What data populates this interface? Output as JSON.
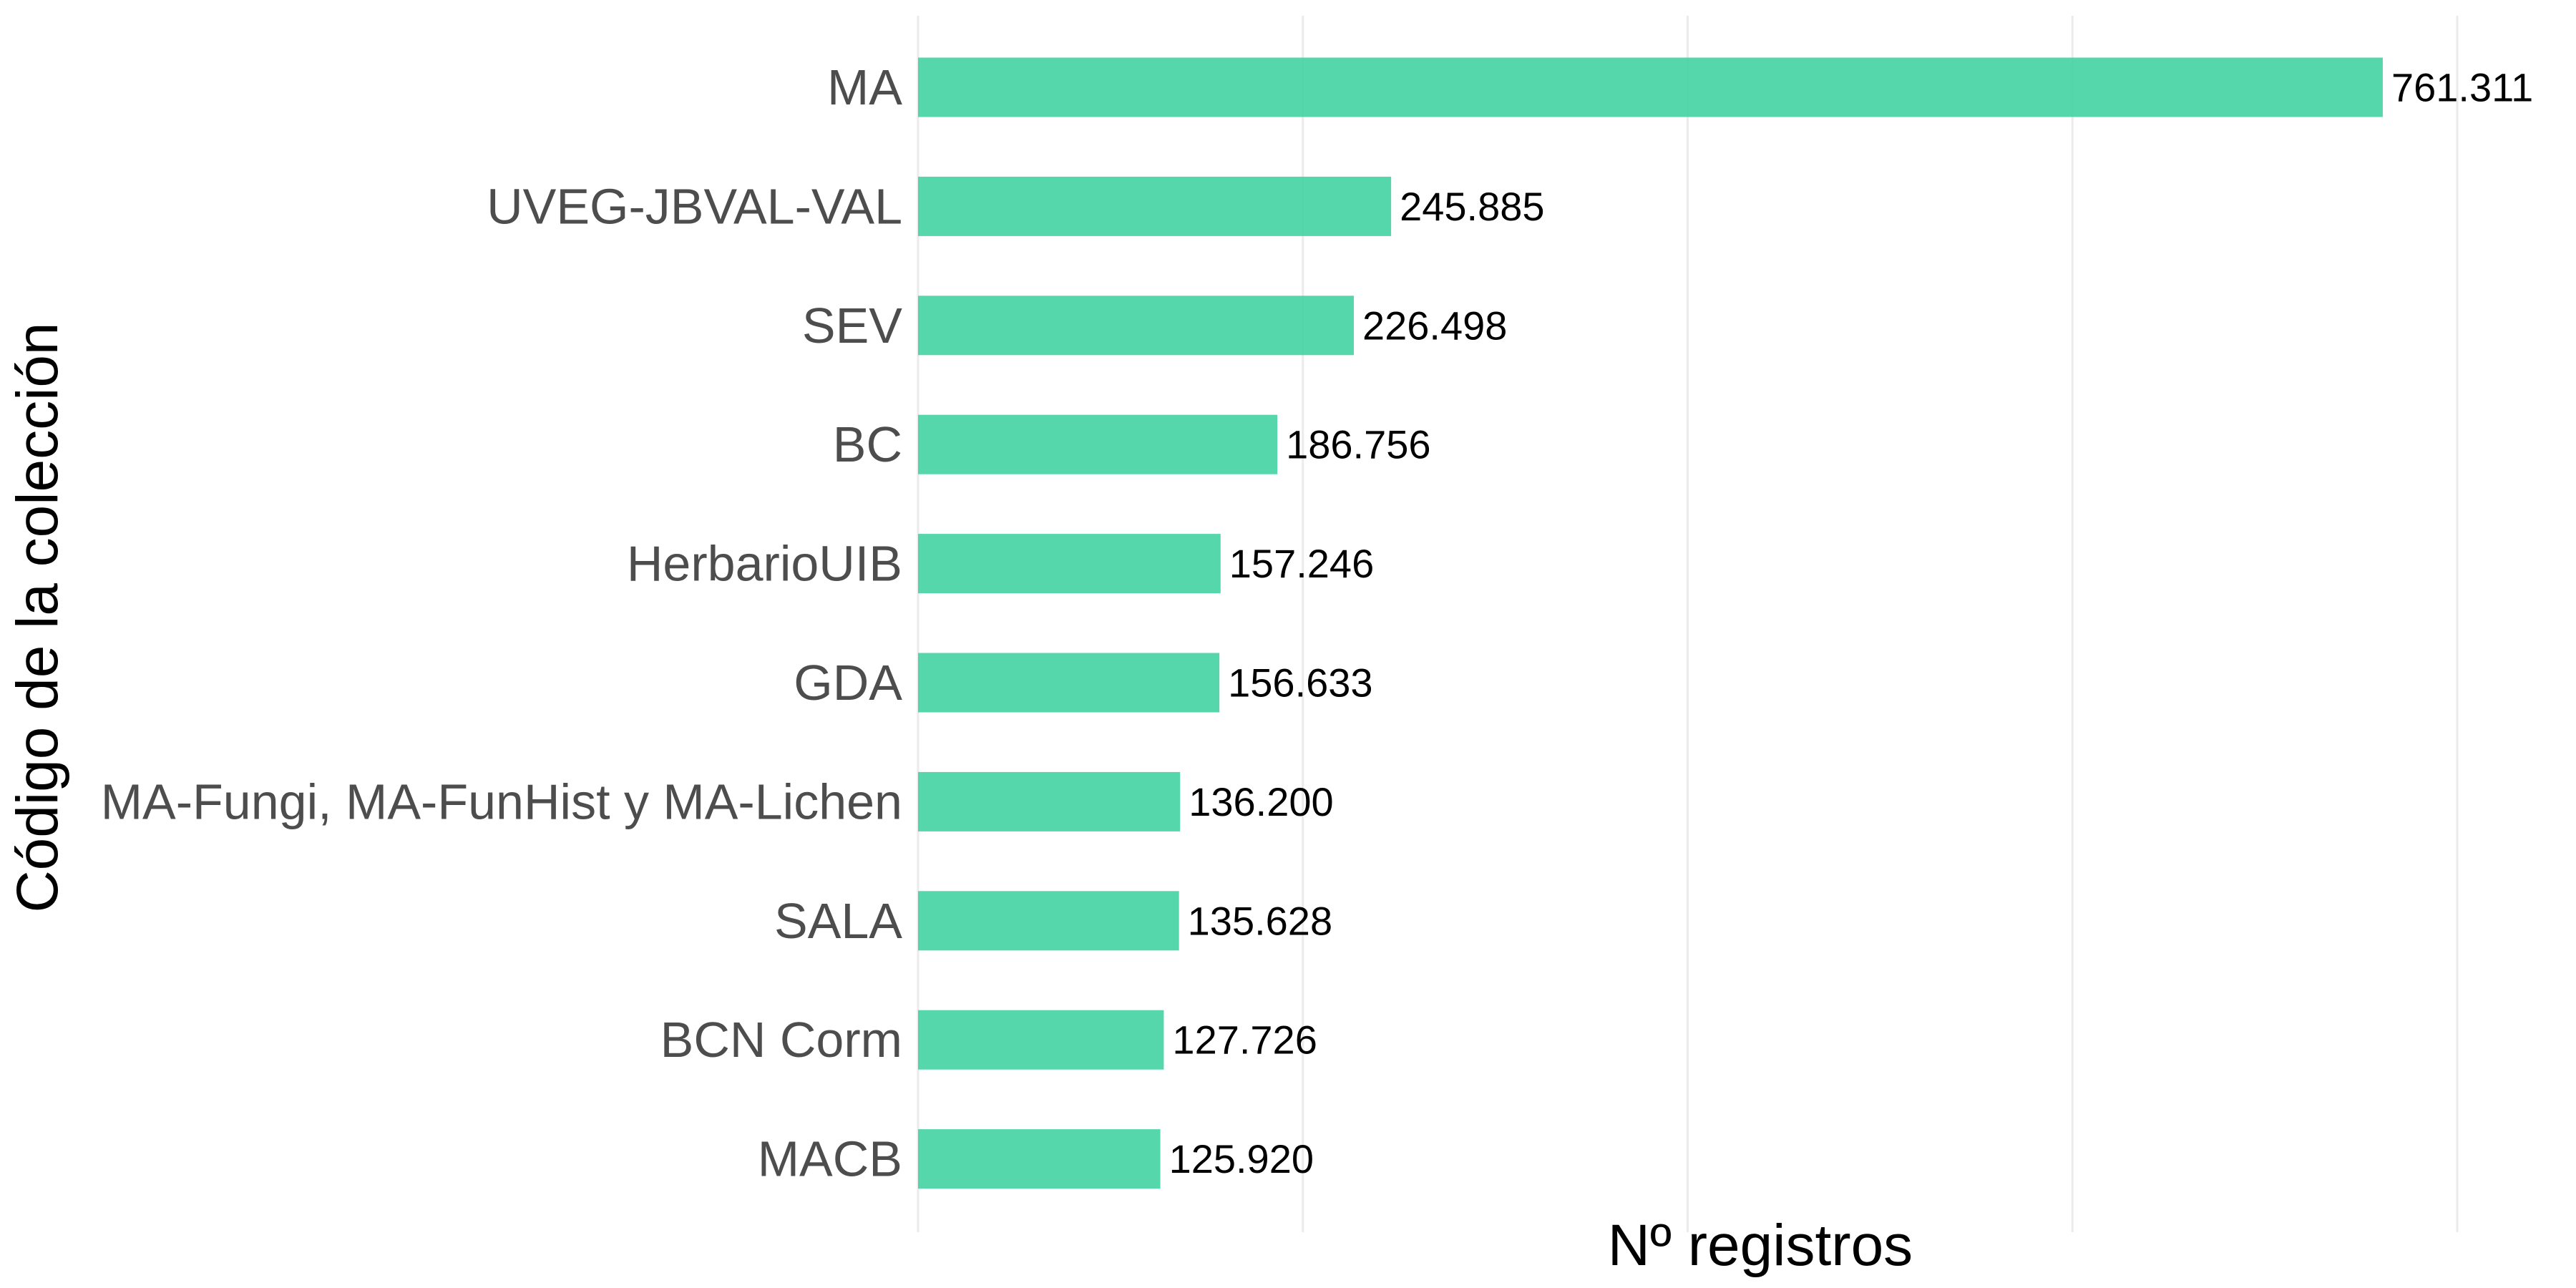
{
  "chart_data": {
    "type": "bar",
    "orientation": "horizontal",
    "categories": [
      "MA",
      "UVEG-JBVAL-VAL",
      "SEV",
      "BC",
      "HerbarioUIB",
      "GDA",
      "MA-Fungi, MA-FunHist y MA-Lichen",
      "SALA",
      "BCN Corm",
      "MACB"
    ],
    "values": [
      761311,
      245885,
      226498,
      186756,
      157246,
      156633,
      136200,
      135628,
      127726,
      125920
    ],
    "value_labels": [
      "761.311",
      "245.885",
      "226.498",
      "186.756",
      "157.246",
      "156.633",
      "136.200",
      "135.628",
      "127.726",
      "125.920"
    ],
    "title": "",
    "xlabel": "Nº registros",
    "ylabel": "Código de la colección",
    "xlim": [
      0,
      800000
    ],
    "x_gridlines": [
      0,
      200000,
      400000,
      600000,
      800000
    ],
    "x_tick_labels_shown": false,
    "grid": "vertical-major",
    "legend": "none",
    "bar_color": "#3fd19f",
    "gridline_color": "#ebebeb",
    "category_label_color": "#4d4d4d",
    "value_label_color": "#000000"
  }
}
